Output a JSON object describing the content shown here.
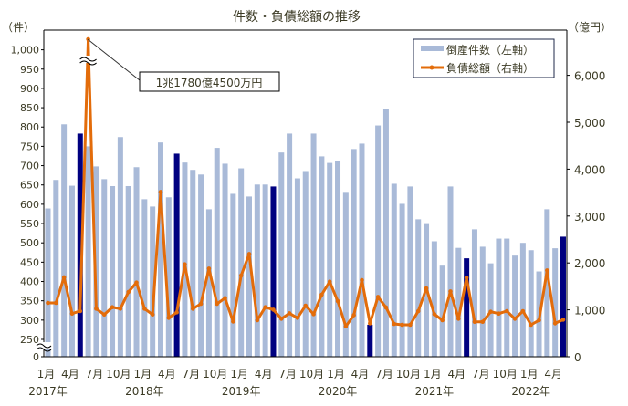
{
  "chart_data": {
    "type": "bar+line",
    "title": "件数・負債総額の推移",
    "left_axis": {
      "unit": "（件）",
      "ticks": [
        0,
        250,
        300,
        350,
        400,
        450,
        500,
        550,
        600,
        650,
        700,
        750,
        800,
        850,
        900,
        950,
        1000
      ],
      "tick_labels": [
        "0",
        "250",
        "300",
        "350",
        "400",
        "450",
        "500",
        "550",
        "600",
        "650",
        "700",
        "750",
        "800",
        "850",
        "900",
        "950",
        "1,000"
      ],
      "broken_between": [
        0,
        250
      ]
    },
    "right_axis": {
      "unit": "（億円）",
      "ticks": [
        0,
        1000,
        2000,
        3000,
        4000,
        5000,
        6000
      ],
      "tick_labels": [
        "0",
        "1,000",
        "2,000",
        "3,000",
        "4,000",
        "5,000",
        "6,000"
      ]
    },
    "x_tick_labels": [
      "1月",
      "4月",
      "7月",
      "10月",
      "1月",
      "4月",
      "7月",
      "10月",
      "1月",
      "4月",
      "7月",
      "10月",
      "1月",
      "4月",
      "7月",
      "10月",
      "1月",
      "4月",
      "7月",
      "10月",
      "1月",
      "4月"
    ],
    "year_labels": [
      "2017年",
      "2018年",
      "2019年",
      "2020年",
      "2021年",
      "2022年"
    ],
    "legend": {
      "position": "top-right",
      "entries": [
        "倒産件数（左軸）",
        "負債総額（右軸）"
      ]
    },
    "annotation": "1兆1780億4500万円",
    "colors": {
      "bar": "#a9bad8",
      "bar_highlight": "#000080",
      "line": "#e36c0a"
    },
    "highlight_month": 5,
    "series": [
      {
        "name": "倒産件数（左軸）",
        "axis": "left",
        "type": "bar",
        "values": [
          589,
          663,
          807,
          648,
          783,
          750,
          698,
          665,
          647,
          774,
          647,
          696,
          613,
          594,
          760,
          618,
          731,
          708,
          689,
          677,
          587,
          746,
          705,
          627,
          693,
          620,
          651,
          651,
          646,
          734,
          783,
          667,
          686,
          783,
          724,
          707,
          712,
          632,
          743,
          757,
          288,
          804,
          847,
          653,
          601,
          646,
          561,
          551,
          504,
          441,
          646,
          487,
          460,
          535,
          490,
          447,
          511,
          511,
          467,
          500,
          481,
          426,
          587,
          486,
          516
        ]
      },
      {
        "name": "負債総額（右軸）",
        "axis": "right",
        "type": "line",
        "values": [
          1148,
          1148,
          1693,
          920,
          973,
          11780,
          1023,
          900,
          1056,
          1023,
          1381,
          1581,
          1023,
          900,
          3514,
          829,
          946,
          1971,
          1023,
          1128,
          1880,
          1128,
          1251,
          751,
          1731,
          2191,
          778,
          1056,
          1004,
          809,
          926,
          829,
          1089,
          907,
          1323,
          1601,
          1187,
          648,
          887,
          1634,
          712,
          1276,
          1051,
          700,
          681,
          681,
          973,
          1459,
          907,
          778,
          1393,
          809,
          1685,
          745,
          745,
          959,
          920,
          973,
          809,
          973,
          681,
          778,
          1840,
          712,
          790
        ]
      }
    ],
    "start": "2017-01",
    "end": "2022-05"
  }
}
